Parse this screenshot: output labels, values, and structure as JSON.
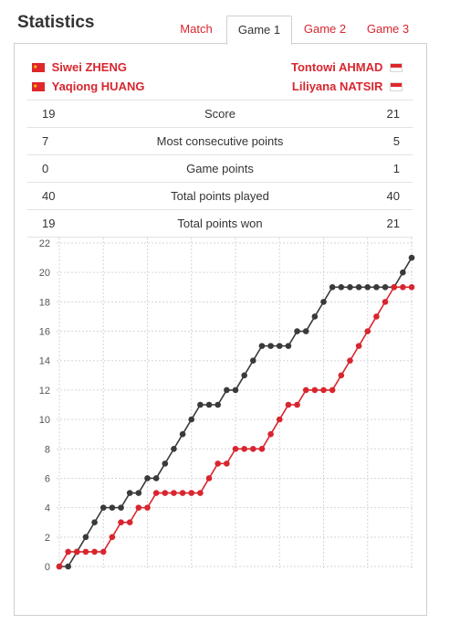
{
  "page": {
    "title": "Statistics"
  },
  "tabs": [
    {
      "label": "Match",
      "active": false
    },
    {
      "label": "Game 1",
      "active": true
    },
    {
      "label": "Game 2",
      "active": false
    },
    {
      "label": "Game 3",
      "active": false
    }
  ],
  "players": {
    "left": [
      {
        "name": "Siwei ZHENG",
        "flag_icon": "china-flag-icon"
      },
      {
        "name": "Yaqiong HUANG",
        "flag_icon": "china-flag-icon"
      }
    ],
    "right": [
      {
        "name": "Tontowi AHMAD",
        "flag_icon": "indonesia-flag-icon"
      },
      {
        "name": "Liliyana NATSIR",
        "flag_icon": "indonesia-flag-icon"
      }
    ]
  },
  "stats": [
    {
      "left": "19",
      "label": "Score",
      "right": "21"
    },
    {
      "left": "7",
      "label": "Most consecutive points",
      "right": "5"
    },
    {
      "left": "0",
      "label": "Game points",
      "right": "1"
    },
    {
      "left": "40",
      "label": "Total points played",
      "right": "40"
    },
    {
      "left": "19",
      "label": "Total points won",
      "right": "21"
    }
  ],
  "colors": {
    "accent": "#d8262f",
    "dark_series": "#3a3a3a",
    "red_series": "#d8262f"
  },
  "chart_data": {
    "type": "line",
    "x": [
      0,
      1,
      2,
      3,
      4,
      5,
      6,
      7,
      8,
      9,
      10,
      11,
      12,
      13,
      14,
      15,
      16,
      17,
      18,
      19,
      20,
      21,
      22,
      23,
      24,
      25,
      26,
      27,
      28,
      29,
      30,
      31,
      32,
      33,
      34,
      35,
      36,
      37,
      38,
      39,
      40
    ],
    "ylim": [
      0,
      22
    ],
    "yticks": [
      0,
      2,
      4,
      6,
      8,
      10,
      12,
      14,
      16,
      18,
      20,
      22
    ],
    "grid": true,
    "series": [
      {
        "color": "#3a3a3a",
        "values": [
          0,
          0,
          1,
          2,
          3,
          4,
          4,
          4,
          5,
          5,
          6,
          6,
          7,
          8,
          9,
          10,
          11,
          11,
          11,
          12,
          12,
          13,
          14,
          15,
          15,
          15,
          15,
          16,
          16,
          17,
          18,
          19,
          19,
          19,
          19,
          19,
          19,
          19,
          19,
          20,
          21
        ]
      },
      {
        "color": "#d8262f",
        "values": [
          0,
          1,
          1,
          1,
          1,
          1,
          2,
          3,
          3,
          4,
          4,
          5,
          5,
          5,
          5,
          5,
          5,
          6,
          7,
          7,
          8,
          8,
          8,
          8,
          9,
          10,
          11,
          11,
          12,
          12,
          12,
          12,
          13,
          14,
          15,
          16,
          17,
          18,
          19,
          19,
          19
        ]
      }
    ]
  }
}
